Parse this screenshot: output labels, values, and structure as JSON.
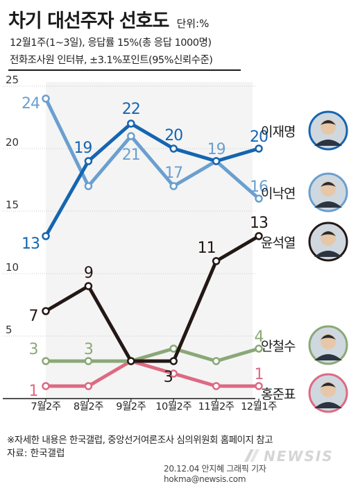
{
  "header": {
    "title": "차기 대선주자 선호도",
    "unit": "단위:%",
    "survey_line1": "12월1주(1~3일), 응답률 15%(총 응답 1000명)",
    "survey_line2": "전화조사원 인터뷰, ±3.1%포인트(95%신뢰수준)"
  },
  "footer": {
    "note": "※자세한 내용은 한국갤럽, 중앙선거여론조사 심의위원회 홈페이지 참고",
    "source": "자료: 한국갤럽",
    "credit": "20.12.04 안지혜 그래픽 기자 hokma@newsis.com",
    "logo_text": "NEWSIS"
  },
  "chart_data": {
    "type": "line",
    "categories": [
      "7월2주",
      "8월2주",
      "9월2주",
      "10월2주",
      "11월2주",
      "12월1주"
    ],
    "ylim": [
      0,
      25
    ],
    "yticks": [
      5,
      10,
      15,
      20,
      25
    ],
    "grid": true,
    "legend_placement": "right",
    "series": [
      {
        "name": "이재명",
        "color": "#1565b0",
        "values": [
          13,
          19,
          22,
          20,
          19,
          20
        ]
      },
      {
        "name": "이낙연",
        "color": "#6a9fd0",
        "values": [
          24,
          17,
          21,
          17,
          19,
          16
        ]
      },
      {
        "name": "윤석열",
        "color": "#231815",
        "values": [
          7,
          9,
          3,
          3,
          11,
          13
        ]
      },
      {
        "name": "안철수",
        "color": "#8aa876",
        "values": [
          3,
          3,
          3,
          4,
          3,
          4
        ]
      },
      {
        "name": "홍준표",
        "color": "#dd6a82",
        "values": [
          1,
          1,
          3,
          2,
          1,
          1
        ]
      }
    ],
    "annotations": [
      {
        "series": "이재명",
        "labels": [
          "13",
          "19",
          "22",
          "20",
          "",
          "20"
        ]
      },
      {
        "series": "이낙연",
        "labels": [
          "24",
          "",
          "21",
          "17",
          "19",
          "16"
        ]
      },
      {
        "series": "윤석열",
        "labels": [
          "7",
          "9",
          "",
          "3",
          "11",
          "13"
        ]
      },
      {
        "series": "안철수",
        "labels": [
          "3",
          "3",
          "",
          "",
          "",
          "4"
        ]
      },
      {
        "series": "홍준표",
        "labels": [
          "1",
          "",
          "",
          "",
          "",
          "1"
        ]
      }
    ]
  }
}
